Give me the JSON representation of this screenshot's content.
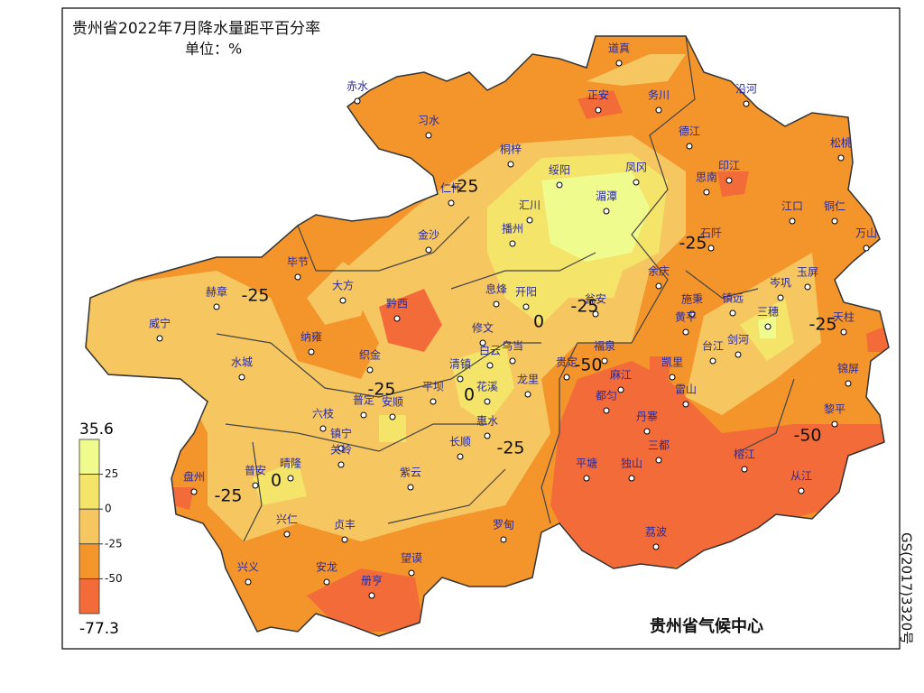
{
  "header": {
    "title": "贵州省2022年7月降水量距平百分率",
    "unit": "单位：%"
  },
  "stations": [
    "道真",
    "正安",
    "务川",
    "沿河",
    "赤水",
    "习水",
    "德江",
    "松桃",
    "桐梓",
    "绥阳",
    "凤冈",
    "印江",
    "思南",
    "湄潭",
    "汇川",
    "江口",
    "铜仁",
    "仁怀",
    "播州",
    "石阡",
    "万山",
    "金沙",
    "毕节",
    "大方",
    "余庆",
    "玉屏",
    "岑巩",
    "赫章",
    "息烽",
    "开阳",
    "黔西",
    "瓮安",
    "施秉",
    "镇远",
    "三穗",
    "天柱",
    "威宁",
    "纳雍",
    "修文",
    "黄平",
    "白云",
    "乌当",
    "清镇",
    "织金",
    "福泉",
    "台江",
    "剑河",
    "凯里",
    "水城",
    "平坝",
    "花溪",
    "龙里",
    "贵定",
    "麻江",
    "雷山",
    "锦屏",
    "都匀",
    "普定",
    "安顺",
    "六枝",
    "惠水",
    "丹寨",
    "黎平",
    "镇宁",
    "长顺",
    "三都",
    "关岭",
    "平塘",
    "独山",
    "榕江",
    "晴隆",
    "紫云",
    "普安",
    "盘州",
    "从江",
    "兴仁",
    "贞丰",
    "罗甸",
    "荔波",
    "兴义",
    "安龙",
    "望谟",
    "册亨"
  ],
  "contour_labels": [
    -25,
    -25,
    -25,
    -25,
    0,
    -50,
    0,
    -25,
    -25,
    -25,
    0,
    -25,
    -50
  ],
  "legend": {
    "max": 35.6,
    "min": -77.3,
    "levels": [
      25,
      0,
      -25,
      -50
    ],
    "colors": [
      "#f0fb8e",
      "#f4e46a",
      "#f6c660",
      "#f4952b",
      "#f36b39"
    ]
  },
  "credit": "贵州省气候中心",
  "map_number": "GS(2017)3320号"
}
